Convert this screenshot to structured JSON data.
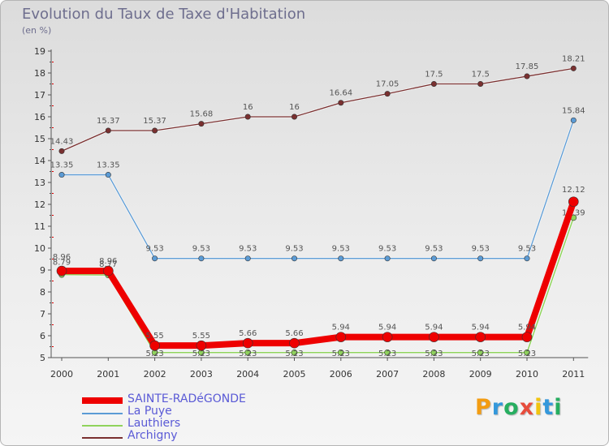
{
  "chart_data": {
    "type": "line",
    "title": "Evolution du Taux de Taxe d'Habitation",
    "unit_label": "(en %)",
    "x": [
      2000,
      2001,
      2002,
      2003,
      2004,
      2005,
      2006,
      2007,
      2008,
      2009,
      2010,
      2011
    ],
    "ylim": [
      5,
      19
    ],
    "yticks": [
      5,
      6,
      7,
      8,
      9,
      10,
      11,
      12,
      13,
      14,
      15,
      16,
      17,
      18,
      19
    ],
    "grid": false,
    "legend_position": "bottom-left",
    "series": [
      {
        "name": "Archigny",
        "color": "#7a3030",
        "labels": [
          "14.43",
          "15.37",
          "15.37",
          "15.68",
          "16",
          "16",
          "16.64",
          "17.05",
          "17.5",
          "17.5",
          "17.85",
          "18.21"
        ],
        "values": [
          14.43,
          15.37,
          15.37,
          15.68,
          16,
          16,
          16.64,
          17.05,
          17.5,
          17.5,
          17.85,
          18.21
        ]
      },
      {
        "name": "La Puye",
        "color": "#5b9bd5",
        "labels": [
          "13.35",
          "13.35",
          "9.53",
          "9.53",
          "9.53",
          "9.53",
          "9.53",
          "9.53",
          "9.53",
          "9.53",
          "9.53",
          "15.84"
        ],
        "values": [
          13.35,
          13.35,
          9.53,
          9.53,
          9.53,
          9.53,
          9.53,
          9.53,
          9.53,
          9.53,
          9.53,
          15.84
        ]
      },
      {
        "name": "Lauthiers",
        "color": "#8fd35c",
        "labels": [
          "8.79",
          "8.77",
          "5.23",
          "5.23",
          "5.23",
          "5.23",
          "5.23",
          "5.23",
          "5.23",
          "5.23",
          "5.23",
          "11.39"
        ],
        "values": [
          8.79,
          8.77,
          5.23,
          5.23,
          5.23,
          5.23,
          5.23,
          5.23,
          5.23,
          5.23,
          5.23,
          11.39
        ]
      },
      {
        "name": "SAINTE-RADéGONDE",
        "color": "#ee0000",
        "labels": [
          "8.96",
          "8.96",
          "5.55",
          "5.55",
          "5.66",
          "5.66",
          "5.94",
          "5.94",
          "5.94",
          "5.94",
          "5.94",
          "12.12"
        ],
        "values": [
          8.96,
          8.96,
          5.55,
          5.55,
          5.66,
          5.66,
          5.94,
          5.94,
          5.94,
          5.94,
          5.94,
          12.12
        ]
      }
    ]
  },
  "legend": {
    "items": [
      {
        "label": "SAINTE-RADéGONDE",
        "color": "#ee0000"
      },
      {
        "label": "La Puye",
        "color": "#5b9bd5"
      },
      {
        "label": "Lauthiers",
        "color": "#8fd35c"
      },
      {
        "label": "Archigny",
        "color": "#7a3030"
      }
    ]
  },
  "logo": {
    "text": "Proxiti",
    "letter_colors": [
      "#f39c12",
      "#3498db",
      "#27ae60",
      "#e74c3c",
      "#f1c40f",
      "#3498db",
      "#27ae60"
    ]
  }
}
